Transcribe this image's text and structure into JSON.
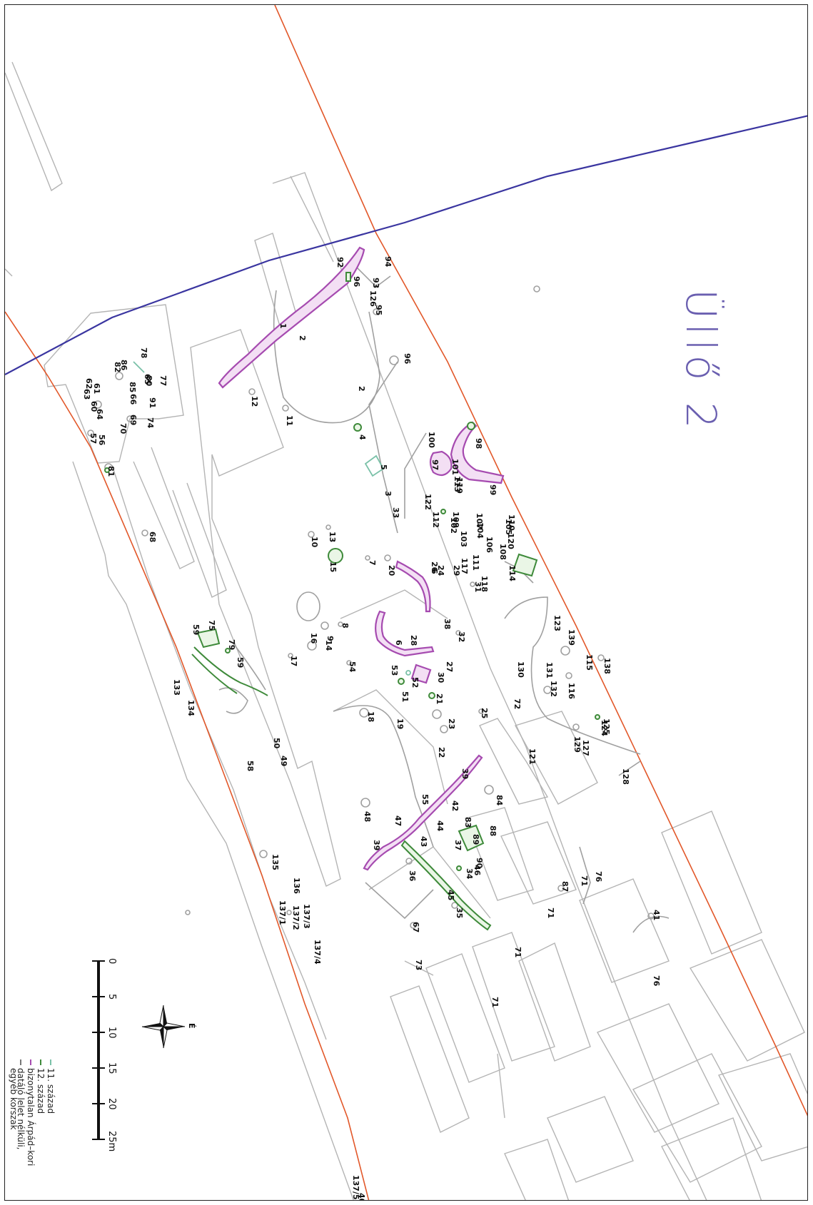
{
  "map": {
    "title": "Üllő 2",
    "colors": {
      "boundary": "#e2582a",
      "road": "#3a35a0",
      "century_11": "#7ac1a8",
      "century_12": "#3e8a3a",
      "uncertain_arpad": "#a64bb0",
      "undated": "#a0a0a0",
      "outline": "#b4b4b4"
    },
    "feature_labels": [
      "1",
      "2",
      "2",
      "3",
      "4",
      "5",
      "6",
      "6",
      "7",
      "8",
      "9",
      "10",
      "11",
      "12",
      "13",
      "14",
      "15",
      "16",
      "17",
      "18",
      "19",
      "20",
      "21",
      "22",
      "23",
      "24",
      "25",
      "26",
      "27",
      "28",
      "29",
      "30",
      "31",
      "32",
      "33",
      "34",
      "35",
      "36",
      "37",
      "38",
      "39",
      "39",
      "40",
      "41",
      "42",
      "43",
      "44",
      "45",
      "46",
      "47",
      "48",
      "49",
      "50",
      "51",
      "52",
      "53",
      "54",
      "55",
      "56",
      "57",
      "58",
      "59",
      "59",
      "60",
      "61",
      "62",
      "63",
      "64",
      "65",
      "66",
      "67",
      "68",
      "69",
      "70",
      "71",
      "71",
      "71",
      "71",
      "72",
      "73",
      "74",
      "75",
      "76",
      "76",
      "77",
      "78",
      "79",
      "80",
      "81",
      "82",
      "83",
      "84",
      "85",
      "86",
      "87",
      "88",
      "89",
      "90",
      "91",
      "92",
      "93",
      "94",
      "95",
      "96",
      "96",
      "97",
      "98",
      "99",
      "100",
      "101",
      "102",
      "103",
      "104",
      "105",
      "106",
      "107",
      "108",
      "109",
      "110",
      "111",
      "112",
      "113",
      "114",
      "115",
      "116",
      "117",
      "118",
      "119",
      "120",
      "121",
      "122",
      "123",
      "124",
      "125",
      "126",
      "127",
      "128",
      "129",
      "130",
      "131",
      "132",
      "133",
      "134",
      "135",
      "136",
      "137/1",
      "137/2",
      "137/3",
      "137/4",
      "137/5",
      "138",
      "139",
      "140"
    ]
  },
  "scale": {
    "ticks": [
      "0",
      "5",
      "10",
      "15",
      "20",
      "25m"
    ]
  },
  "compass": {
    "label": "É"
  },
  "legend": {
    "items": [
      {
        "label": "11. század",
        "color": "#7ac1a8"
      },
      {
        "label": "12. század",
        "color": "#3e8a3a"
      },
      {
        "label": "bizonytalan Árpád–kori",
        "color": "#a64bb0"
      },
      {
        "label": "datáló lelet nélküli,",
        "color": "#a0a0a0"
      },
      {
        "label": "egyéb korszak",
        "color": "#ffffff"
      }
    ]
  }
}
